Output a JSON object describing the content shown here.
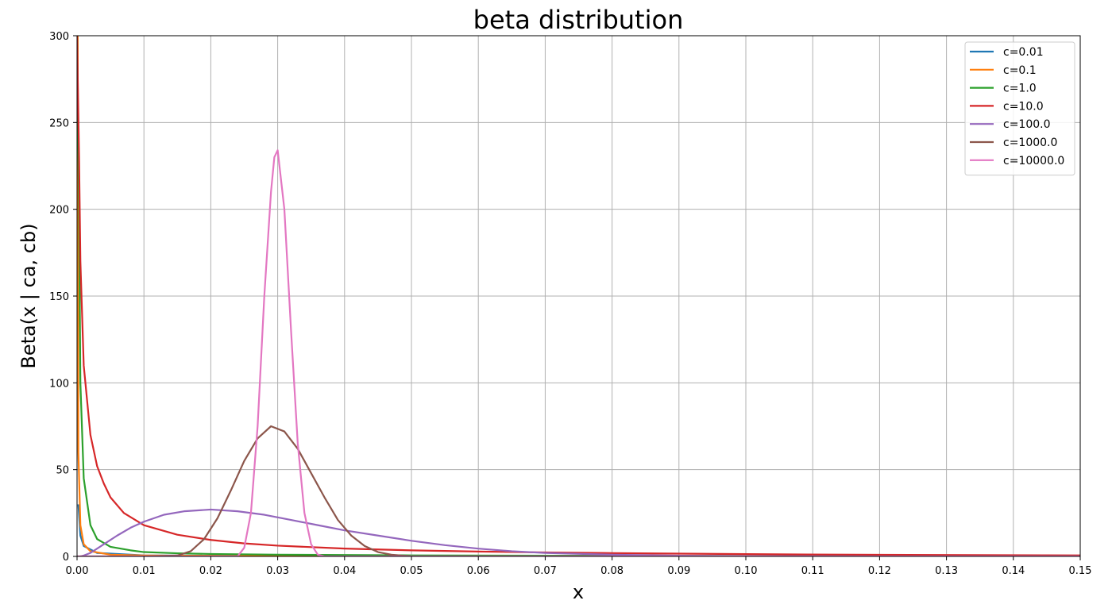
{
  "chart_data": {
    "type": "line",
    "title": "beta distribution",
    "xlabel": "x",
    "ylabel": "Beta(x | ca, cb)",
    "xlim": [
      0.0,
      0.15
    ],
    "ylim": [
      0,
      300
    ],
    "x_ticks": [
      "0.00",
      "0.01",
      "0.02",
      "0.03",
      "0.04",
      "0.05",
      "0.06",
      "0.07",
      "0.08",
      "0.09",
      "0.10",
      "0.11",
      "0.12",
      "0.13",
      "0.14",
      "0.15"
    ],
    "y_ticks": [
      "0",
      "50",
      "100",
      "150",
      "200",
      "250",
      "300"
    ],
    "grid": true,
    "legend_position": "top-right",
    "series": [
      {
        "name": "c=0.01",
        "color": "#1f77b4",
        "x": [
          0.0002,
          0.0005,
          0.001,
          0.003,
          0.01,
          0.03,
          0.06,
          0.1,
          0.15
        ],
        "y": [
          30,
          12,
          6,
          2,
          0.6,
          0.2,
          0.1,
          0.05,
          0.03
        ]
      },
      {
        "name": "c=0.1",
        "color": "#ff7f0e",
        "x": [
          0.0001,
          0.0002,
          0.0005,
          0.001,
          0.002,
          0.005,
          0.01,
          0.03,
          0.06,
          0.1,
          0.15
        ],
        "y": [
          300,
          60,
          18,
          7,
          3,
          1,
          0.5,
          0.15,
          0.07,
          0.04,
          0.02
        ]
      },
      {
        "name": "c=1.0",
        "color": "#2ca02c",
        "x": [
          0.0,
          0.0003,
          0.0005,
          0.001,
          0.002,
          0.003,
          0.005,
          0.008,
          0.01,
          0.015,
          0.02,
          0.03,
          0.05,
          0.08,
          0.1,
          0.15
        ],
        "y": [
          300,
          200,
          100,
          45,
          18,
          10,
          5.5,
          3.5,
          2.5,
          1.8,
          1.4,
          1.0,
          0.6,
          0.35,
          0.25,
          0.1
        ]
      },
      {
        "name": "c=10.0",
        "color": "#d62728",
        "x": [
          0.0,
          0.0003,
          0.0005,
          0.001,
          0.002,
          0.003,
          0.004,
          0.005,
          0.007,
          0.01,
          0.015,
          0.02,
          0.025,
          0.03,
          0.04,
          0.05,
          0.06,
          0.07,
          0.08,
          0.1,
          0.12,
          0.15
        ],
        "y": [
          300,
          230,
          170,
          110,
          70,
          52,
          42,
          34,
          25,
          18,
          12.5,
          9.5,
          7.5,
          6.2,
          4.5,
          3.5,
          2.8,
          2.3,
          1.9,
          1.3,
          0.9,
          0.6
        ]
      },
      {
        "name": "c=100.0",
        "color": "#9467bd",
        "x": [
          0.0005,
          0.001,
          0.002,
          0.004,
          0.006,
          0.008,
          0.01,
          0.013,
          0.016,
          0.02,
          0.024,
          0.028,
          0.032,
          0.036,
          0.04,
          0.045,
          0.05,
          0.055,
          0.06,
          0.065,
          0.07,
          0.08,
          0.09,
          0.1,
          0.12,
          0.15
        ],
        "y": [
          0,
          0.5,
          2,
          7,
          12,
          16.5,
          20,
          24,
          26,
          27,
          26,
          24,
          21,
          18,
          15,
          12,
          9,
          6.5,
          4.5,
          3,
          2,
          1,
          0.4,
          0.2,
          0,
          0
        ]
      },
      {
        "name": "c=1000.0",
        "color": "#8c564b",
        "x": [
          0.0,
          0.01,
          0.015,
          0.017,
          0.019,
          0.021,
          0.023,
          0.025,
          0.027,
          0.029,
          0.031,
          0.033,
          0.035,
          0.037,
          0.039,
          0.041,
          0.043,
          0.045,
          0.047,
          0.05,
          0.06,
          0.15
        ],
        "y": [
          0,
          0,
          0.5,
          3,
          10,
          22,
          38,
          55,
          68,
          75,
          72,
          62,
          48,
          34,
          21,
          12,
          6,
          2.5,
          1,
          0,
          0,
          0
        ]
      },
      {
        "name": "c=10000.0",
        "color": "#e377c2",
        "x": [
          0.0,
          0.024,
          0.025,
          0.026,
          0.027,
          0.028,
          0.029,
          0.0295,
          0.03,
          0.031,
          0.032,
          0.033,
          0.034,
          0.035,
          0.036,
          0.037,
          0.15
        ],
        "y": [
          0,
          0,
          5,
          25,
          75,
          150,
          210,
          230,
          234,
          200,
          130,
          65,
          25,
          7,
          1,
          0,
          0
        ]
      }
    ]
  }
}
